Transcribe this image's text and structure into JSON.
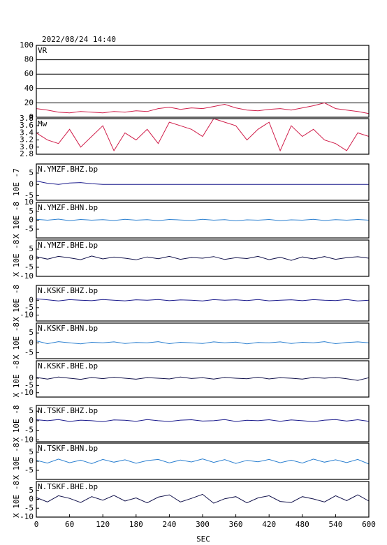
{
  "title": "2022/08/24  14:40",
  "chart_data": [
    {
      "type": "line",
      "title": "VR",
      "color": "#d01e4a",
      "grid": true,
      "xlim": [
        0,
        600
      ],
      "ylim": [
        0,
        100
      ],
      "yticks": [
        0,
        20,
        40,
        60,
        80,
        100
      ],
      "x": [
        0,
        20,
        40,
        60,
        80,
        100,
        120,
        140,
        160,
        180,
        200,
        220,
        240,
        260,
        280,
        300,
        320,
        340,
        360,
        380,
        400,
        420,
        440,
        460,
        480,
        500,
        520,
        540,
        560,
        580,
        600
      ],
      "values": [
        12,
        10,
        7,
        6,
        8,
        7,
        6,
        8,
        7,
        9,
        8,
        12,
        14,
        11,
        13,
        12,
        15,
        18,
        13,
        10,
        9,
        11,
        12,
        10,
        13,
        16,
        20,
        12,
        10,
        8,
        5
      ]
    },
    {
      "type": "line",
      "title": "Mw",
      "color": "#d01e4a",
      "grid": false,
      "xlim": [
        0,
        600
      ],
      "ylim": [
        2.8,
        3.8
      ],
      "yticks": [
        {
          "value": 2.8,
          "label": "2.8"
        },
        {
          "value": 3.0,
          "label": "3.0"
        },
        3.2,
        3.4,
        3.6,
        3.8
      ],
      "x": [
        0,
        20,
        40,
        60,
        80,
        100,
        120,
        140,
        160,
        180,
        200,
        220,
        240,
        260,
        280,
        300,
        320,
        340,
        360,
        380,
        400,
        420,
        440,
        460,
        480,
        500,
        520,
        540,
        560,
        580,
        600
      ],
      "values": [
        3.4,
        3.2,
        3.1,
        3.5,
        3.0,
        3.3,
        3.6,
        2.9,
        3.4,
        3.2,
        3.5,
        3.1,
        3.7,
        3.6,
        3.5,
        3.3,
        3.8,
        3.7,
        3.6,
        3.2,
        3.5,
        3.7,
        2.9,
        3.6,
        3.3,
        3.5,
        3.2,
        3.1,
        2.9,
        3.4,
        3.3
      ]
    },
    {
      "type": "line",
      "title": "N.YMZF.BHZ.bp",
      "ylabel": "10E -7",
      "color": "#1a1a8c",
      "grid": false,
      "xlim": [
        0,
        600
      ],
      "ylim": [
        -7,
        9
      ],
      "yticks": [
        -5,
        0,
        5
      ],
      "x": [
        0,
        20,
        40,
        60,
        80,
        100,
        120,
        140,
        160,
        180,
        200,
        220,
        240,
        260,
        280,
        300,
        320,
        340,
        360,
        380,
        400,
        420,
        440,
        460,
        480,
        500,
        520,
        540,
        560,
        580,
        600
      ],
      "values": [
        1.5,
        0.5,
        0,
        0.6,
        0.8,
        0.3,
        0,
        0,
        0,
        0,
        0,
        0,
        0,
        0,
        0,
        0,
        0,
        0,
        0,
        0,
        0,
        0,
        0,
        0,
        0,
        0,
        0,
        0,
        0,
        0,
        0
      ]
    },
    {
      "type": "line",
      "title": "N.YMZF.BHN.bp",
      "ylabel": "X 10E -8",
      "color": "#2a7fd0",
      "grid": false,
      "xlim": [
        0,
        600
      ],
      "ylim": [
        -10,
        10
      ],
      "yticks": [
        -5,
        0,
        5,
        10
      ],
      "x": [
        0,
        20,
        40,
        60,
        80,
        100,
        120,
        140,
        160,
        180,
        200,
        220,
        240,
        260,
        280,
        300,
        320,
        340,
        360,
        380,
        400,
        420,
        440,
        460,
        480,
        500,
        520,
        540,
        560,
        580,
        600
      ],
      "values": [
        0.5,
        0,
        0.6,
        -0.3,
        0.4,
        0,
        0.3,
        -0.2,
        0.5,
        0,
        0.3,
        -0.3,
        0.4,
        0.1,
        -0.2,
        0.5,
        0,
        0.3,
        -0.4,
        0.2,
        0,
        0.4,
        -0.3,
        0.2,
        0,
        0.5,
        -0.2,
        0.3,
        0,
        0.4,
        0
      ]
    },
    {
      "type": "line",
      "title": "N.YMZF.BHE.bp",
      "ylabel": "X 10E -8",
      "color": "#10104a",
      "grid": false,
      "xlim": [
        0,
        600
      ],
      "ylim": [
        -10,
        10
      ],
      "yticks": [
        -10,
        -5,
        0,
        5
      ],
      "x": [
        0,
        20,
        40,
        60,
        80,
        100,
        120,
        140,
        160,
        180,
        200,
        220,
        240,
        260,
        280,
        300,
        320,
        340,
        360,
        380,
        400,
        420,
        440,
        460,
        480,
        500,
        520,
        540,
        560,
        580,
        600
      ],
      "values": [
        0.8,
        -0.5,
        1,
        0.2,
        -0.8,
        1.2,
        -0.4,
        0.6,
        0,
        -0.9,
        0.7,
        -0.3,
        1,
        -0.6,
        0.4,
        0,
        0.9,
        -0.7,
        0.3,
        -0.2,
        1,
        -0.8,
        0.5,
        -1.2,
        0.7,
        -0.4,
        0.9,
        -0.6,
        0.3,
        0.8,
        0
      ]
    },
    {
      "type": "line",
      "title": "N.KSKF.BHZ.bp",
      "ylabel": "X 10E -8",
      "color": "#1a1a8c",
      "grid": false,
      "xlim": [
        0,
        600
      ],
      "ylim": [
        -14,
        10
      ],
      "yticks": [
        -10,
        -5,
        0
      ],
      "x": [
        0,
        20,
        40,
        60,
        80,
        100,
        120,
        140,
        160,
        180,
        200,
        220,
        240,
        260,
        280,
        300,
        320,
        340,
        360,
        380,
        400,
        420,
        440,
        460,
        480,
        500,
        520,
        540,
        560,
        580,
        600
      ],
      "values": [
        1,
        0.3,
        -0.5,
        0.4,
        0,
        -0.3,
        0.5,
        0,
        -0.4,
        0.3,
        0,
        0.5,
        -0.3,
        0.2,
        0,
        -0.5,
        0.4,
        0,
        0.3,
        -0.2,
        0.5,
        -0.4,
        0,
        0.3,
        -0.3,
        0.4,
        0,
        -0.2,
        0.5,
        -0.5,
        0
      ]
    },
    {
      "type": "line",
      "title": "N.KSKF.BHN.bp",
      "ylabel": "X 10E -8",
      "color": "#2a7fd0",
      "grid": false,
      "xlim": [
        0,
        600
      ],
      "ylim": [
        -8,
        10
      ],
      "yticks": [
        -5,
        0,
        5
      ],
      "x": [
        0,
        20,
        40,
        60,
        80,
        100,
        120,
        140,
        160,
        180,
        200,
        220,
        240,
        260,
        280,
        300,
        320,
        340,
        360,
        380,
        400,
        420,
        440,
        460,
        480,
        500,
        520,
        540,
        560,
        580,
        600
      ],
      "values": [
        1,
        -0.4,
        0.6,
        0,
        -0.5,
        0.3,
        0,
        0.5,
        -0.3,
        0.2,
        0,
        0.6,
        -0.4,
        0.3,
        0,
        -0.3,
        0.5,
        0,
        0.4,
        -0.5,
        0.2,
        0,
        0.5,
        -0.3,
        0.3,
        0,
        0.6,
        -0.4,
        0.2,
        0.5,
        0
      ]
    },
    {
      "type": "line",
      "title": "N.KSKF.BHE.bp",
      "ylabel": "X 10E -8",
      "color": "#10104a",
      "grid": false,
      "xlim": [
        0,
        600
      ],
      "ylim": [
        -13,
        12
      ],
      "yticks": [
        -10,
        -5,
        0
      ],
      "x": [
        0,
        20,
        40,
        60,
        80,
        100,
        120,
        140,
        160,
        180,
        200,
        220,
        240,
        260,
        280,
        300,
        320,
        340,
        360,
        380,
        400,
        420,
        440,
        460,
        480,
        500,
        520,
        540,
        560,
        580,
        600
      ],
      "values": [
        0.5,
        -0.6,
        0.8,
        0,
        -0.8,
        0.5,
        -0.3,
        0.7,
        0,
        -0.7,
        0.4,
        0,
        -0.5,
        0.8,
        -0.2,
        0.3,
        -0.6,
        0.5,
        0,
        -0.4,
        0.7,
        -0.5,
        0.3,
        0,
        -0.6,
        0.5,
        0,
        0.6,
        -0.4,
        -1.5,
        0.3
      ]
    },
    {
      "type": "line",
      "title": "N.TSKF.BHZ.bp",
      "ylabel": "X 10E -8",
      "color": "#1a1a8c",
      "grid": false,
      "xlim": [
        0,
        600
      ],
      "ylim": [
        -11,
        8
      ],
      "yticks": [
        -10,
        -5,
        0,
        5
      ],
      "x": [
        0,
        20,
        40,
        60,
        80,
        100,
        120,
        140,
        160,
        180,
        200,
        220,
        240,
        260,
        280,
        300,
        320,
        340,
        360,
        380,
        400,
        420,
        440,
        460,
        480,
        500,
        520,
        540,
        560,
        580,
        600
      ],
      "values": [
        0.5,
        0,
        0.6,
        -0.4,
        0.3,
        0,
        -0.5,
        0.4,
        0.2,
        -0.3,
        0.6,
        0,
        -0.4,
        0.3,
        0.5,
        -0.2,
        0,
        0.6,
        -0.4,
        0.2,
        0,
        0.5,
        -0.3,
        0.4,
        0,
        -0.5,
        0.3,
        0.6,
        -0.2,
        0.5,
        -0.3
      ]
    },
    {
      "type": "line",
      "title": "N.TSKF.BHN.bp",
      "ylabel": "X 10E -8",
      "color": "#2a7fd0",
      "grid": false,
      "xlim": [
        0,
        600
      ],
      "ylim": [
        -10,
        10
      ],
      "yticks": [
        -5,
        0,
        5
      ],
      "x": [
        0,
        20,
        40,
        60,
        80,
        100,
        120,
        140,
        160,
        180,
        200,
        220,
        240,
        260,
        280,
        300,
        320,
        340,
        360,
        380,
        400,
        420,
        440,
        460,
        480,
        500,
        520,
        540,
        560,
        580,
        600
      ],
      "values": [
        0.5,
        -1,
        1.2,
        -0.8,
        0.6,
        -1.3,
        1,
        -0.5,
        0.8,
        -1.1,
        0.4,
        1,
        -0.9,
        0.7,
        -0.4,
        1.3,
        -0.6,
        0.9,
        -1.2,
        0.5,
        -0.3,
        1,
        -0.8,
        0.6,
        -1,
        1.2,
        -0.5,
        0.8,
        -0.7,
        1,
        -1.5
      ]
    },
    {
      "type": "line",
      "title": "N.TSKF.BHE.bp",
      "ylabel": "X 10E -8",
      "color": "#10104a",
      "grid": false,
      "xlim": [
        0,
        600
      ],
      "ylim": [
        -10,
        10
      ],
      "yticks": [
        -10,
        -5,
        0,
        5
      ],
      "x": [
        0,
        20,
        40,
        60,
        80,
        100,
        120,
        140,
        160,
        180,
        200,
        220,
        240,
        260,
        280,
        300,
        320,
        340,
        360,
        380,
        400,
        420,
        440,
        460,
        480,
        500,
        520,
        540,
        560,
        580,
        600
      ],
      "values": [
        1,
        -1.5,
        2,
        0.5,
        -1.8,
        1.5,
        -0.5,
        2.2,
        -1,
        0.8,
        -2,
        1.2,
        2.5,
        -1.5,
        0.5,
        2.8,
        -2.2,
        0.3,
        1.5,
        -2,
        0.8,
        2,
        -1.2,
        -1.8,
        1.5,
        0.2,
        -1.5,
        2,
        -0.8,
        2.5,
        -1
      ]
    }
  ],
  "xticks": [
    0,
    60,
    120,
    180,
    240,
    300,
    360,
    420,
    480,
    540,
    600
  ],
  "xlabel": "SEC"
}
